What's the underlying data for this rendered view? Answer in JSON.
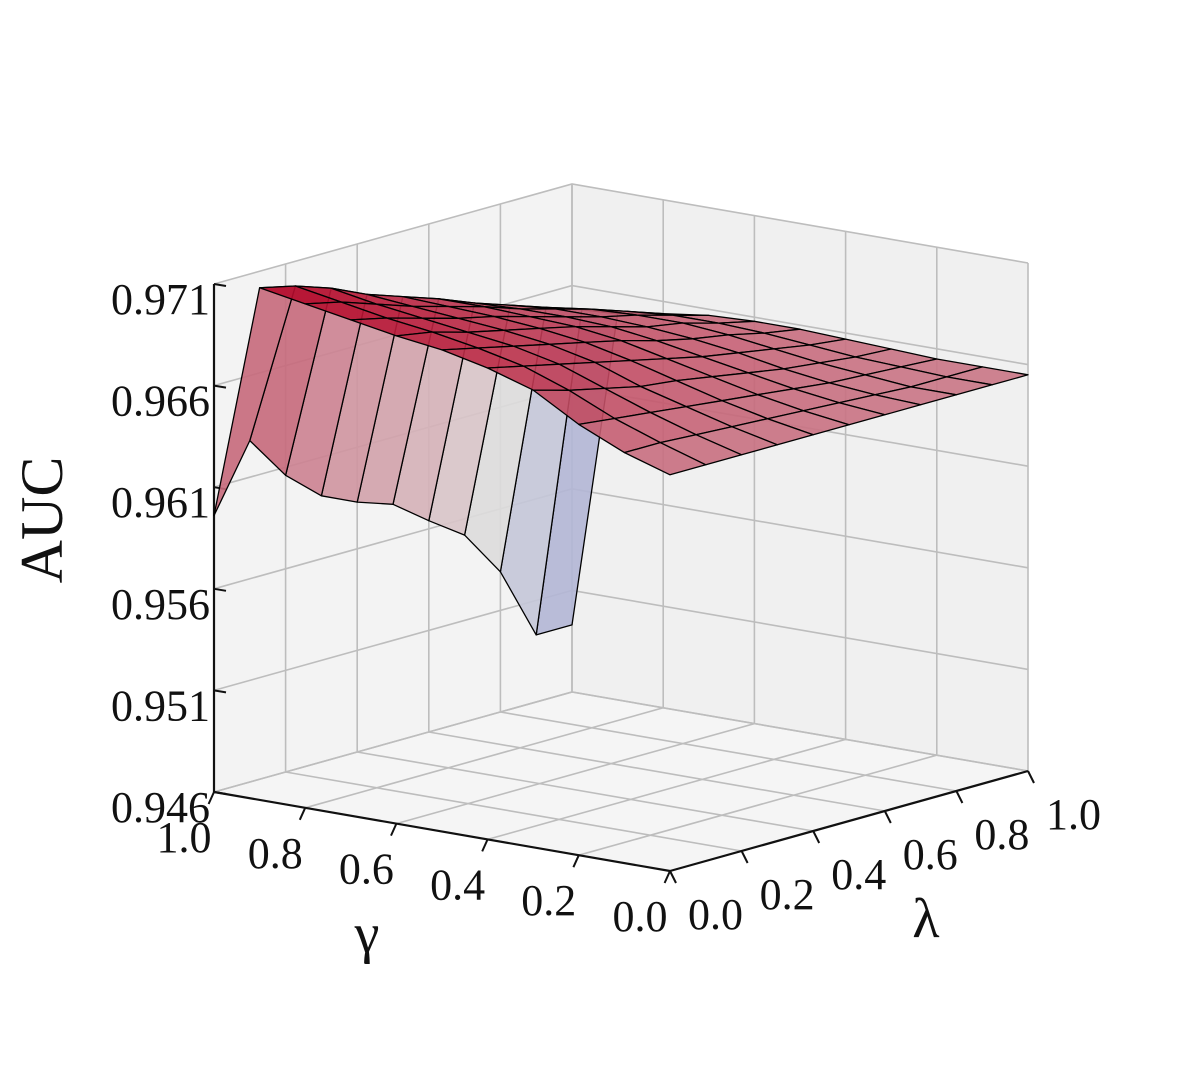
{
  "chart_data": {
    "type": "surface3d",
    "title": "",
    "xlabel": "γ",
    "ylabel": "λ",
    "zlabel": "AUC",
    "x_ticks": [
      "0.0",
      "0.2",
      "0.4",
      "0.6",
      "0.8",
      "1.0"
    ],
    "y_ticks": [
      "0.0",
      "0.2",
      "0.4",
      "0.6",
      "0.8",
      "1.0"
    ],
    "z_ticks": [
      "0.946",
      "0.951",
      "0.956",
      "0.961",
      "0.966",
      "0.971"
    ],
    "xlim": [
      0,
      1
    ],
    "ylim": [
      0,
      1
    ],
    "zlim": [
      0.946,
      0.971
    ],
    "grid": true,
    "colormap": "coolwarm",
    "colormap_colors": [
      "#3b4cc0",
      "#dddddd",
      "#b40426"
    ],
    "x": [
      0.0,
      0.1,
      0.2,
      0.3,
      0.4,
      0.5,
      0.6,
      0.7,
      0.8,
      0.9,
      1.0
    ],
    "y": [
      0.0,
      0.1,
      0.2,
      0.3,
      0.4,
      0.5,
      0.6,
      0.7,
      0.8,
      0.9,
      1.0
    ],
    "z_rows_by_lambda": [
      [
        0.9655,
        0.9662,
        0.9672,
        0.9685,
        0.9692,
        0.9697,
        0.97,
        0.9704,
        0.9708,
        0.9712,
        0.9596
      ],
      [
        0.9655,
        0.9662,
        0.967,
        0.968,
        0.9688,
        0.9693,
        0.9697,
        0.97,
        0.9704,
        0.9708,
        0.9628
      ],
      [
        0.9655,
        0.9661,
        0.9668,
        0.9676,
        0.9684,
        0.9689,
        0.9692,
        0.9695,
        0.9698,
        0.9702,
        0.9606
      ],
      [
        0.9655,
        0.966,
        0.9666,
        0.9672,
        0.968,
        0.9685,
        0.9688,
        0.969,
        0.9692,
        0.9694,
        0.9591
      ],
      [
        0.9655,
        0.9659,
        0.9664,
        0.967,
        0.9676,
        0.9681,
        0.9684,
        0.9686,
        0.9687,
        0.9688,
        0.9583
      ],
      [
        0.9655,
        0.9658,
        0.9662,
        0.9667,
        0.9672,
        0.9677,
        0.968,
        0.9681,
        0.9682,
        0.9682,
        0.9577
      ],
      [
        0.9655,
        0.9657,
        0.966,
        0.9664,
        0.9668,
        0.9672,
        0.9675,
        0.9676,
        0.9676,
        0.9675,
        0.9564
      ],
      [
        0.9655,
        0.9656,
        0.9658,
        0.9661,
        0.9665,
        0.9668,
        0.967,
        0.9671,
        0.9671,
        0.9669,
        0.9552
      ],
      [
        0.9655,
        0.9655,
        0.9657,
        0.9659,
        0.9662,
        0.9665,
        0.9667,
        0.9667,
        0.9666,
        0.9663,
        0.9529
      ],
      [
        0.9655,
        0.9655,
        0.9656,
        0.9657,
        0.9659,
        0.9661,
        0.9662,
        0.9662,
        0.966,
        0.9657,
        0.9493
      ],
      [
        0.9655,
        0.9655,
        0.9655,
        0.9656,
        0.9657,
        0.9658,
        0.9658,
        0.9657,
        0.9654,
        0.965,
        0.9493
      ]
    ]
  }
}
